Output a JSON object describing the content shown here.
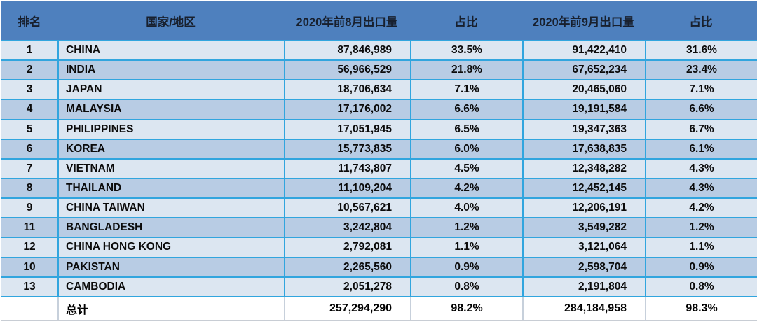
{
  "chart_data": {
    "type": "table",
    "columns": [
      "排名",
      "国家/地区",
      "2020年前8月出口量",
      "占比",
      "2020年前9月出口量",
      "占比"
    ],
    "rows": [
      {
        "rank": "1",
        "country": "CHINA",
        "aug_volume": "87,846,989",
        "aug_share": "33.5%",
        "sep_volume": "91,422,410",
        "sep_share": "31.6%"
      },
      {
        "rank": "2",
        "country": "INDIA",
        "aug_volume": "56,966,529",
        "aug_share": "21.8%",
        "sep_volume": "67,652,234",
        "sep_share": "23.4%"
      },
      {
        "rank": "3",
        "country": "JAPAN",
        "aug_volume": "18,706,634",
        "aug_share": "7.1%",
        "sep_volume": "20,465,060",
        "sep_share": "7.1%"
      },
      {
        "rank": "4",
        "country": "MALAYSIA",
        "aug_volume": "17,176,002",
        "aug_share": "6.6%",
        "sep_volume": "19,191,584",
        "sep_share": "6.6%"
      },
      {
        "rank": "5",
        "country": "PHILIPPINES",
        "aug_volume": "17,051,945",
        "aug_share": "6.5%",
        "sep_volume": "19,347,363",
        "sep_share": "6.7%"
      },
      {
        "rank": "6",
        "country": "KOREA",
        "aug_volume": "15,773,835",
        "aug_share": "6.0%",
        "sep_volume": "17,638,835",
        "sep_share": "6.1%"
      },
      {
        "rank": "7",
        "country": "VIETNAM",
        "aug_volume": "11,743,807",
        "aug_share": "4.5%",
        "sep_volume": "12,348,282",
        "sep_share": "4.3%"
      },
      {
        "rank": "8",
        "country": "THAILAND",
        "aug_volume": "11,109,204",
        "aug_share": "4.2%",
        "sep_volume": "12,452,145",
        "sep_share": "4.3%"
      },
      {
        "rank": "9",
        "country": "CHINA TAIWAN",
        "aug_volume": "10,567,621",
        "aug_share": "4.0%",
        "sep_volume": "12,206,191",
        "sep_share": "4.2%"
      },
      {
        "rank": "11",
        "country": "BANGLADESH",
        "aug_volume": "3,242,804",
        "aug_share": "1.2%",
        "sep_volume": "3,549,282",
        "sep_share": "1.2%"
      },
      {
        "rank": "12",
        "country": "CHINA HONG KONG",
        "aug_volume": "2,792,081",
        "aug_share": "1.1%",
        "sep_volume": "3,121,064",
        "sep_share": "1.1%"
      },
      {
        "rank": "10",
        "country": "PAKISTAN",
        "aug_volume": "2,265,560",
        "aug_share": "0.9%",
        "sep_volume": "2,598,704",
        "sep_share": "0.9%"
      },
      {
        "rank": "13",
        "country": "CAMBODIA",
        "aug_volume": "2,051,278",
        "aug_share": "0.8%",
        "sep_volume": "2,191,804",
        "sep_share": "0.8%"
      }
    ],
    "total": {
      "label": "总计",
      "aug_volume": "257,294,290",
      "aug_share": "98.2%",
      "sep_volume": "284,184,958",
      "sep_share": "98.3%"
    }
  },
  "colors": {
    "header_bg": "#4E80BE",
    "row_light": "#DCE6F1",
    "row_dark": "#B8CCE4",
    "grid_line": "#31A5DE",
    "total_bg": "#FFFFFF"
  }
}
